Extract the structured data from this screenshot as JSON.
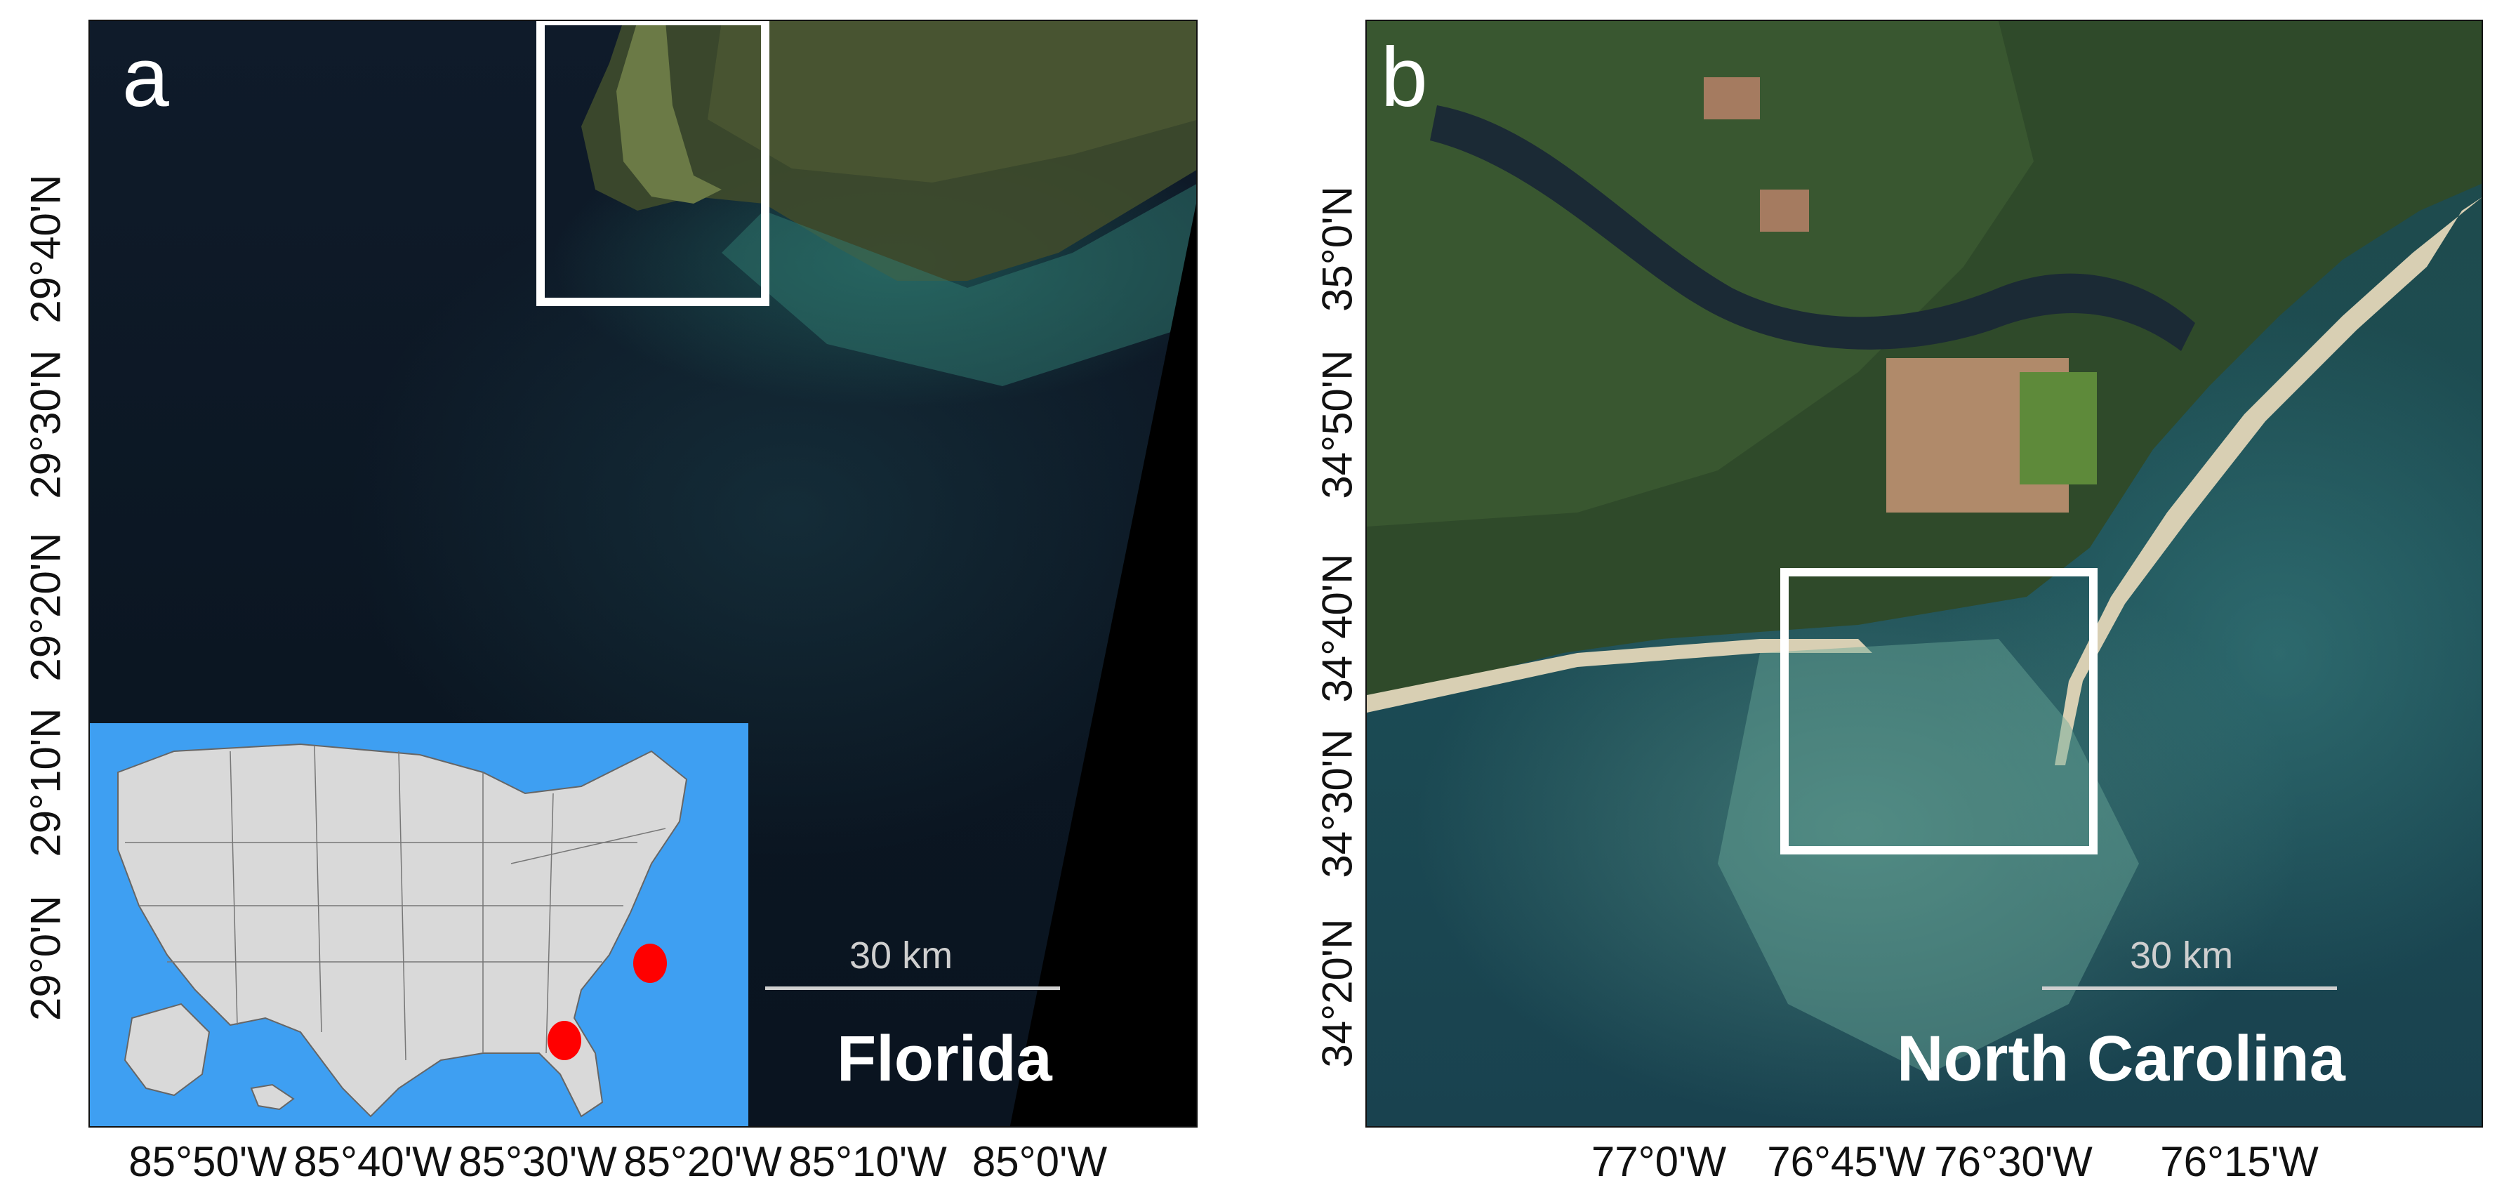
{
  "panel_a": {
    "letter": "a",
    "region_label": "Florida",
    "scale_bar_label": "30 km",
    "lat_labels": [
      "29°40'N",
      "29°30'N",
      "29°20'N",
      "29°10'N",
      "29°0'N"
    ],
    "lon_labels": [
      "85°50'W",
      "85°40'W",
      "85°30'W",
      "85°20'W",
      "85°10'W",
      "85°0'W"
    ],
    "inset_map": {
      "land_color": "#d9d9d9",
      "water_color": "#3e9ff2",
      "marker_color": "#ff0000",
      "markers": [
        "florida-site",
        "north-carolina-site"
      ]
    }
  },
  "panel_b": {
    "letter": "b",
    "region_label": "North Carolina",
    "scale_bar_label": "30 km",
    "lat_labels": [
      "35°0'N",
      "34°50'N",
      "34°40'N",
      "34°30'N",
      "34°20'N"
    ],
    "lon_labels": [
      "77°0'W",
      "76°45'W",
      "76°30'W",
      "76°15'W"
    ]
  },
  "colors": {
    "study_box": "#ffffff",
    "scale_bar": "#cfcfcf",
    "label_text": "#111111"
  }
}
